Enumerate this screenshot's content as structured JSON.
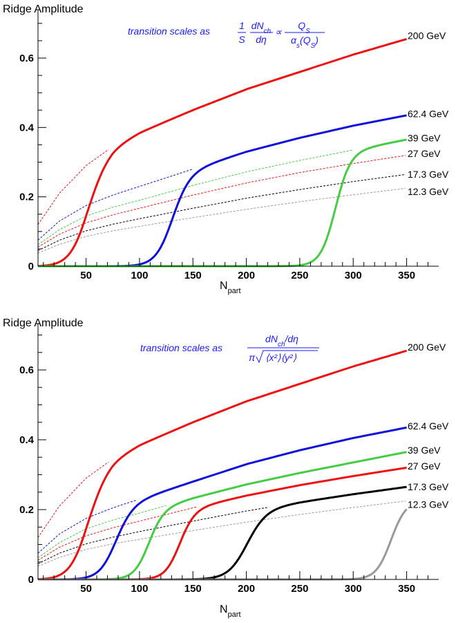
{
  "chart_data": [
    {
      "type": "line",
      "ylabel": "Ridge Amplitude",
      "xlabel": "N",
      "xlabel_sub": "part",
      "xlim": [
        5,
        380
      ],
      "ylim": [
        0,
        0.7
      ],
      "xticks": [
        50,
        100,
        150,
        200,
        250,
        300,
        350
      ],
      "yticks": [
        0,
        0.2,
        0.4,
        0.6
      ],
      "grid": false,
      "annotation": {
        "prefix": "transition scales as",
        "frac1_num": "1",
        "frac1_den": "S",
        "frac2_num": "dN",
        "frac2_num_sub": "ch",
        "frac2_den": "dη",
        "propto": "∝",
        "frac3_num": "Q",
        "frac3_num_sub": "S",
        "frac3_den": "α",
        "frac3_den_sub": "s",
        "frac3_den_arg": "(Q",
        "frac3_den_arg_sub": "S",
        "frac3_den_close": ")"
      },
      "series": [
        {
          "name": "200 GeV",
          "color": "#ee1111",
          "label_y": 0.665,
          "x": [
            5,
            25,
            50,
            75,
            100,
            150,
            200,
            250,
            300,
            350
          ],
          "baseline": [
            0.12,
            0.21,
            0.29,
            0.345,
            0.385,
            0.45,
            0.51,
            0.56,
            0.61,
            0.655
          ],
          "transition_mid": 50,
          "transition_width": 9
        },
        {
          "name": "62.4 GeV",
          "color": "#1010dd",
          "label_y": 0.44,
          "x": [
            5,
            25,
            50,
            75,
            100,
            150,
            200,
            250,
            300,
            350
          ],
          "baseline": [
            0.075,
            0.13,
            0.175,
            0.205,
            0.23,
            0.28,
            0.33,
            0.37,
            0.405,
            0.435
          ],
          "transition_mid": 130,
          "transition_width": 8
        },
        {
          "name": "39 GeV",
          "color": "#44cc44",
          "label_y": 0.37,
          "x": [
            5,
            25,
            50,
            75,
            100,
            150,
            200,
            250,
            300,
            350
          ],
          "baseline": [
            0.062,
            0.105,
            0.145,
            0.17,
            0.19,
            0.233,
            0.272,
            0.305,
            0.335,
            0.365
          ],
          "transition_mid": 283,
          "transition_width": 7
        },
        {
          "name": "27 GeV",
          "color": "#ee1111",
          "label_y": 0.325,
          "x": [
            5,
            25,
            50,
            75,
            100,
            150,
            200,
            250,
            300,
            350
          ],
          "baseline": [
            0.055,
            0.092,
            0.125,
            0.148,
            0.167,
            0.205,
            0.24,
            0.27,
            0.296,
            0.32
          ],
          "transition_mid": null,
          "transition_width": null
        },
        {
          "name": "17.3 GeV",
          "color": "#000000",
          "label_y": 0.265,
          "x": [
            5,
            25,
            50,
            75,
            100,
            150,
            200,
            250,
            300,
            350
          ],
          "baseline": [
            0.045,
            0.075,
            0.102,
            0.121,
            0.137,
            0.167,
            0.196,
            0.221,
            0.244,
            0.265
          ],
          "transition_mid": null,
          "transition_width": null
        },
        {
          "name": "12.3 GeV",
          "color": "#999999",
          "label_y": 0.215,
          "x": [
            5,
            25,
            50,
            75,
            100,
            150,
            200,
            250,
            300,
            350
          ],
          "baseline": [
            0.038,
            0.063,
            0.086,
            0.102,
            0.115,
            0.14,
            0.164,
            0.186,
            0.206,
            0.225
          ],
          "transition_mid": null,
          "transition_width": null
        }
      ]
    },
    {
      "type": "line",
      "ylabel": "Ridge Amplitude",
      "xlabel": "N",
      "xlabel_sub": "part",
      "xlim": [
        5,
        380
      ],
      "ylim": [
        0,
        0.7
      ],
      "xticks": [
        50,
        100,
        150,
        200,
        250,
        300,
        350
      ],
      "yticks": [
        0,
        0.2,
        0.4,
        0.6
      ],
      "grid": false,
      "annotation": {
        "prefix": "transition scales as",
        "num": "dN",
        "num_sub": "ch",
        "num_rest": "/dη",
        "den_pi": "π",
        "den_rad": "⟨x²⟩⟨y²⟩"
      },
      "series": [
        {
          "name": "200 GeV",
          "color": "#ee1111",
          "label_y": 0.665,
          "x": [
            5,
            25,
            50,
            75,
            100,
            150,
            200,
            250,
            300,
            350
          ],
          "baseline": [
            0.12,
            0.21,
            0.29,
            0.345,
            0.385,
            0.45,
            0.51,
            0.56,
            0.61,
            0.655
          ],
          "transition_mid": 50,
          "transition_width": 9
        },
        {
          "name": "62.4 GeV",
          "color": "#1010dd",
          "label_y": 0.44,
          "x": [
            5,
            25,
            50,
            75,
            100,
            150,
            200,
            250,
            300,
            350
          ],
          "baseline": [
            0.075,
            0.13,
            0.175,
            0.205,
            0.23,
            0.28,
            0.33,
            0.37,
            0.405,
            0.435
          ],
          "transition_mid": 77,
          "transition_width": 8
        },
        {
          "name": "39 GeV",
          "color": "#44cc44",
          "label_y": 0.37,
          "x": [
            5,
            25,
            50,
            75,
            100,
            150,
            200,
            250,
            300,
            350
          ],
          "baseline": [
            0.062,
            0.105,
            0.145,
            0.17,
            0.19,
            0.233,
            0.272,
            0.305,
            0.335,
            0.365
          ],
          "transition_mid": 108,
          "transition_width": 7
        },
        {
          "name": "27 GeV",
          "color": "#ee1111",
          "label_y": 0.325,
          "x": [
            5,
            25,
            50,
            75,
            100,
            150,
            200,
            250,
            300,
            350
          ],
          "baseline": [
            0.055,
            0.092,
            0.125,
            0.148,
            0.167,
            0.205,
            0.24,
            0.27,
            0.296,
            0.32
          ],
          "transition_mid": 137,
          "transition_width": 7
        },
        {
          "name": "17.3 GeV",
          "color": "#000000",
          "label_y": 0.265,
          "x": [
            5,
            25,
            50,
            75,
            100,
            150,
            200,
            250,
            300,
            350
          ],
          "baseline": [
            0.045,
            0.075,
            0.102,
            0.121,
            0.137,
            0.167,
            0.196,
            0.221,
            0.244,
            0.265
          ],
          "transition_mid": 200,
          "transition_width": 9
        },
        {
          "name": "12.3 GeV",
          "color": "#999999",
          "label_y": 0.215,
          "x": [
            5,
            25,
            50,
            75,
            100,
            150,
            200,
            250,
            300,
            350
          ],
          "baseline": [
            0.038,
            0.063,
            0.086,
            0.102,
            0.115,
            0.14,
            0.164,
            0.186,
            0.206,
            0.225
          ],
          "transition_mid": 335,
          "transition_width": 7
        }
      ]
    }
  ]
}
